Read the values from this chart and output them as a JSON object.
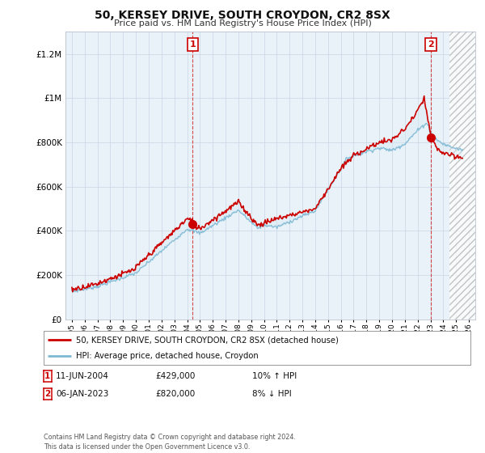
{
  "title": "50, KERSEY DRIVE, SOUTH CROYDON, CR2 8SX",
  "subtitle": "Price paid vs. HM Land Registry's House Price Index (HPI)",
  "legend_line1": "50, KERSEY DRIVE, SOUTH CROYDON, CR2 8SX (detached house)",
  "legend_line2": "HPI: Average price, detached house, Croydon",
  "footer": "Contains HM Land Registry data © Crown copyright and database right 2024.\nThis data is licensed under the Open Government Licence v3.0.",
  "ann1_num": "1",
  "ann1_date": "11-JUN-2004",
  "ann1_price": "£429,000",
  "ann1_pct": "10% ↑ HPI",
  "ann1_x": 2004.44,
  "ann1_y": 429000,
  "ann2_num": "2",
  "ann2_date": "06-JAN-2023",
  "ann2_price": "£820,000",
  "ann2_pct": "8% ↓ HPI",
  "ann2_x": 2023.02,
  "ann2_y": 820000,
  "hpi_color": "#7eb8d4",
  "price_color": "#cc0000",
  "fill_color": "#daeaf5",
  "vline_color": "#cc0000",
  "background_color": "#ffffff",
  "chart_bg": "#e8f2f8",
  "ylim_max": 1300000,
  "xlim_start": 1994.5,
  "xlim_end": 2026.5,
  "hatch_start": 2024.5,
  "yticks": [
    0,
    200000,
    400000,
    600000,
    800000,
    1000000,
    1200000
  ],
  "xticks": [
    1995,
    1996,
    1997,
    1998,
    1999,
    2000,
    2001,
    2002,
    2003,
    2004,
    2005,
    2006,
    2007,
    2008,
    2009,
    2010,
    2011,
    2012,
    2013,
    2014,
    2015,
    2016,
    2017,
    2018,
    2019,
    2020,
    2021,
    2022,
    2023,
    2024,
    2025,
    2026
  ]
}
